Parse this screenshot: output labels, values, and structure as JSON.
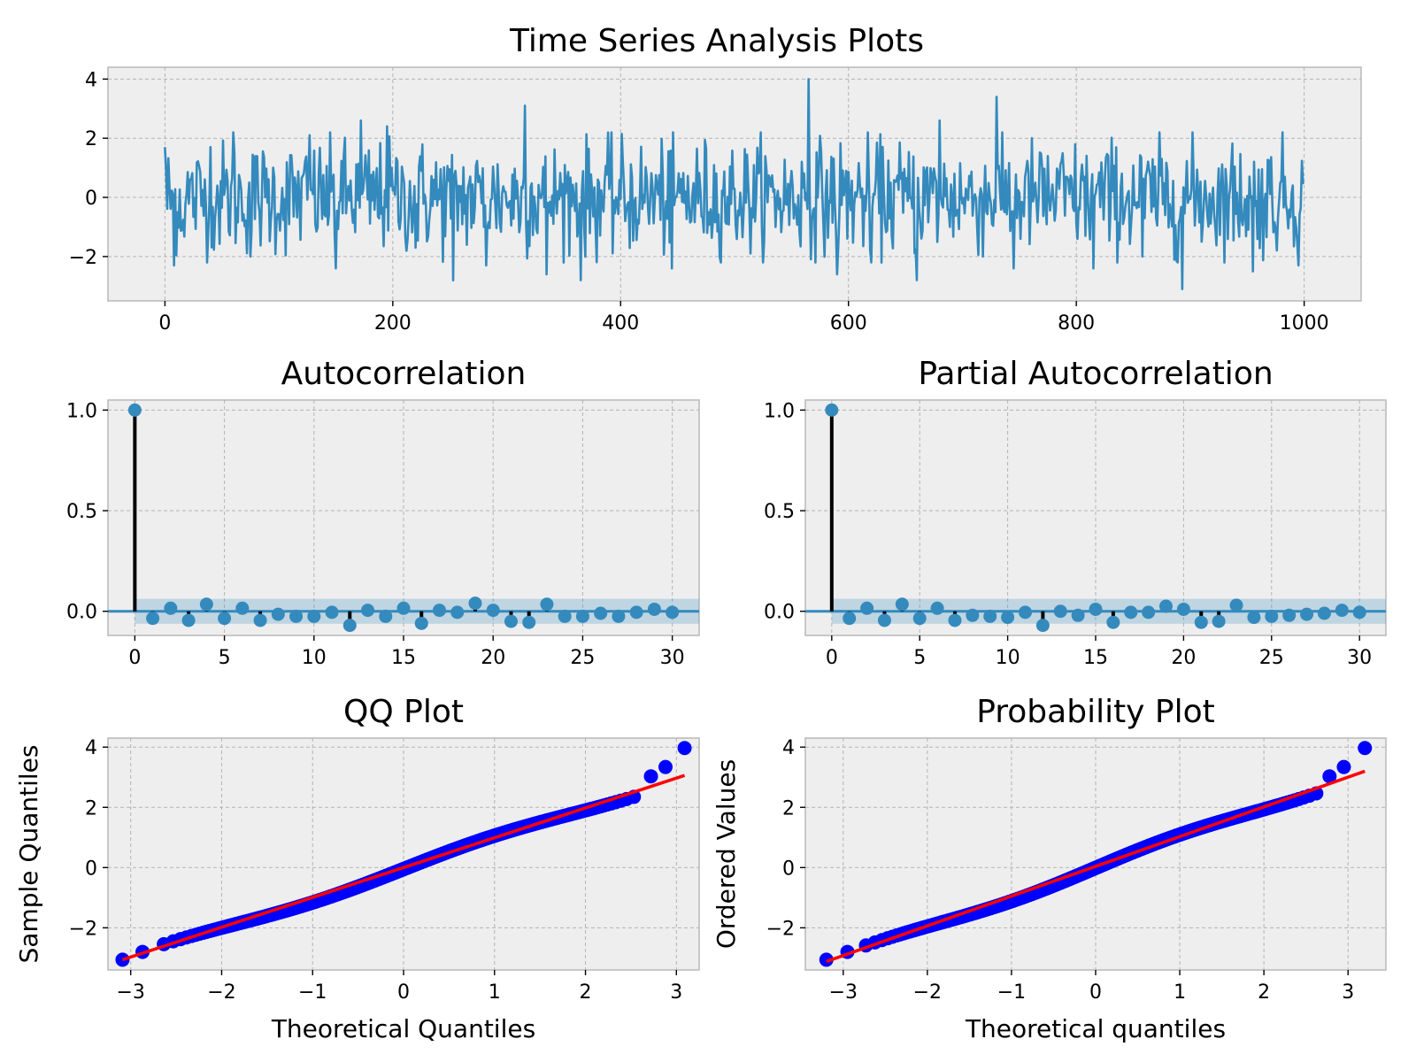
{
  "figure": {
    "title": "Time Series Analysis Plots"
  },
  "chart_data": [
    {
      "type": "line",
      "title": "",
      "xlabel": "",
      "ylabel": "",
      "xlim": [
        -50,
        1050
      ],
      "ylim": [
        -3.5,
        4.4
      ],
      "xticks": [
        "0",
        "200",
        "400",
        "600",
        "800",
        "1000"
      ],
      "yticks": [
        "4",
        "2",
        "0",
        "−2"
      ],
      "grid": true,
      "color": "#348abd",
      "n_points": 1000,
      "series_peaks": [
        {
          "x": 0,
          "y": 1.7
        },
        {
          "x": 8,
          "y": -2.3
        },
        {
          "x": 15,
          "y": -1.1
        },
        {
          "x": 40,
          "y": 1.7
        },
        {
          "x": 60,
          "y": 2.2
        },
        {
          "x": 75,
          "y": -2.0
        },
        {
          "x": 127,
          "y": 2.1
        },
        {
          "x": 150,
          "y": -2.4
        },
        {
          "x": 172,
          "y": 2.6
        },
        {
          "x": 195,
          "y": 2.4
        },
        {
          "x": 220,
          "y": -1.7
        },
        {
          "x": 253,
          "y": -2.8
        },
        {
          "x": 282,
          "y": -2.3
        },
        {
          "x": 316,
          "y": 3.1
        },
        {
          "x": 335,
          "y": -2.6
        },
        {
          "x": 365,
          "y": -2.8
        },
        {
          "x": 445,
          "y": -2.4
        },
        {
          "x": 565,
          "y": 4.0
        },
        {
          "x": 590,
          "y": -2.6
        },
        {
          "x": 620,
          "y": -2.2
        },
        {
          "x": 660,
          "y": -2.8
        },
        {
          "x": 680,
          "y": 2.6
        },
        {
          "x": 730,
          "y": 3.4
        },
        {
          "x": 745,
          "y": -2.4
        },
        {
          "x": 815,
          "y": -2.4
        },
        {
          "x": 858,
          "y": -2.0
        },
        {
          "x": 893,
          "y": -3.1
        },
        {
          "x": 955,
          "y": -2.5
        },
        {
          "x": 995,
          "y": -2.3
        }
      ]
    },
    {
      "type": "scatter",
      "title": "Autocorrelation",
      "xlim": [
        -1.5,
        31.5
      ],
      "ylim": [
        -0.12,
        1.05
      ],
      "xticks": [
        "0",
        "5",
        "10",
        "15",
        "20",
        "25",
        "30"
      ],
      "yticks": [
        "1.0",
        "0.5",
        "0.0"
      ],
      "grid": true,
      "x": [
        0,
        1,
        2,
        3,
        4,
        5,
        6,
        7,
        8,
        9,
        10,
        11,
        12,
        13,
        14,
        15,
        16,
        17,
        18,
        19,
        20,
        21,
        22,
        23,
        24,
        25,
        26,
        27,
        28,
        29,
        30
      ],
      "y": [
        1.0,
        -0.035,
        0.015,
        -0.045,
        0.035,
        -0.035,
        0.015,
        -0.045,
        -0.015,
        -0.025,
        -0.025,
        -0.005,
        -0.07,
        0.005,
        -0.025,
        0.015,
        -0.06,
        0.005,
        -0.005,
        0.04,
        0.005,
        -0.05,
        -0.055,
        0.035,
        -0.025,
        -0.025,
        -0.01,
        -0.025,
        -0.005,
        0.01,
        -0.005
      ],
      "confidence_band": 0.062
    },
    {
      "type": "scatter",
      "title": "Partial Autocorrelation",
      "xlim": [
        -1.5,
        31.5
      ],
      "ylim": [
        -0.12,
        1.05
      ],
      "xticks": [
        "0",
        "5",
        "10",
        "15",
        "20",
        "25",
        "30"
      ],
      "yticks": [
        "1.0",
        "0.5",
        "0.0"
      ],
      "grid": true,
      "x": [
        0,
        1,
        2,
        3,
        4,
        5,
        6,
        7,
        8,
        9,
        10,
        11,
        12,
        13,
        14,
        15,
        16,
        17,
        18,
        19,
        20,
        21,
        22,
        23,
        24,
        25,
        26,
        27,
        28,
        29,
        30
      ],
      "y": [
        1.0,
        -0.035,
        0.015,
        -0.045,
        0.035,
        -0.035,
        0.015,
        -0.045,
        -0.02,
        -0.025,
        -0.03,
        -0.005,
        -0.07,
        0.0,
        -0.02,
        0.01,
        -0.055,
        -0.005,
        -0.005,
        0.025,
        0.01,
        -0.055,
        -0.05,
        0.03,
        -0.03,
        -0.025,
        -0.02,
        -0.015,
        -0.01,
        0.005,
        -0.005
      ],
      "confidence_band": 0.062
    },
    {
      "type": "scatter",
      "title": "QQ Plot",
      "xlabel": "Theoretical Quantiles",
      "ylabel": "Sample Quantiles",
      "xlim": [
        -3.25,
        3.25
      ],
      "ylim": [
        -3.4,
        4.3
      ],
      "xticks": [
        "−3",
        "−2",
        "−1",
        "0",
        "1",
        "2",
        "3"
      ],
      "yticks": [
        "4",
        "2",
        "0",
        "−2"
      ],
      "grid": true,
      "points_color": "#0000ff",
      "fit_line": {
        "x": [
          -3.09,
          3.09
        ],
        "y": [
          -3.06,
          3.06
        ],
        "color": "#ff0000"
      },
      "n_points": 1000,
      "outliers": [
        {
          "x": -3.09,
          "y": -3.06
        },
        {
          "x": -2.87,
          "y": -2.8
        },
        {
          "x": 2.72,
          "y": 3.03
        },
        {
          "x": 2.88,
          "y": 3.34
        },
        {
          "x": 3.09,
          "y": 3.97
        }
      ]
    },
    {
      "type": "scatter",
      "title": "Probability Plot",
      "xlabel": "Theoretical quantiles",
      "ylabel": "Ordered Values",
      "xlim": [
        -3.45,
        3.45
      ],
      "ylim": [
        -3.4,
        4.3
      ],
      "xticks": [
        "−3",
        "−2",
        "−1",
        "0",
        "1",
        "2",
        "3"
      ],
      "yticks": [
        "4",
        "2",
        "0",
        "−2"
      ],
      "grid": true,
      "points_color": "#0000ff",
      "fit_line": {
        "x": [
          -3.2,
          3.2
        ],
        "y": [
          -3.12,
          3.2
        ],
        "color": "#ff0000"
      },
      "n_points": 1000,
      "outliers": [
        {
          "x": -3.2,
          "y": -3.06
        },
        {
          "x": -2.95,
          "y": -2.8
        },
        {
          "x": 2.78,
          "y": 3.03
        },
        {
          "x": 2.95,
          "y": 3.34
        },
        {
          "x": 3.2,
          "y": 3.97
        }
      ]
    }
  ]
}
